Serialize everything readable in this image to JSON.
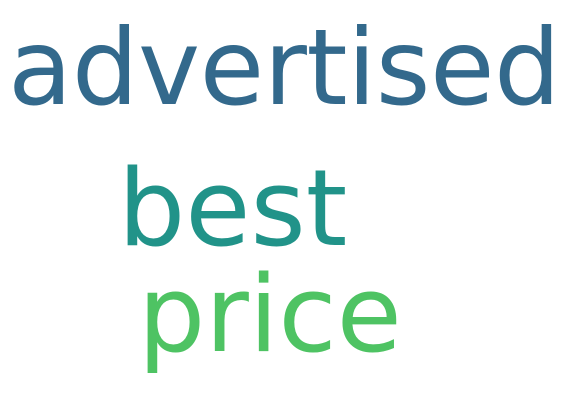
{
  "word_cloud": {
    "words": [
      {
        "text": "advertised",
        "color": "#33698c"
      },
      {
        "text": "best",
        "color": "#219389"
      },
      {
        "text": "price",
        "color": "#4ec363"
      }
    ]
  }
}
